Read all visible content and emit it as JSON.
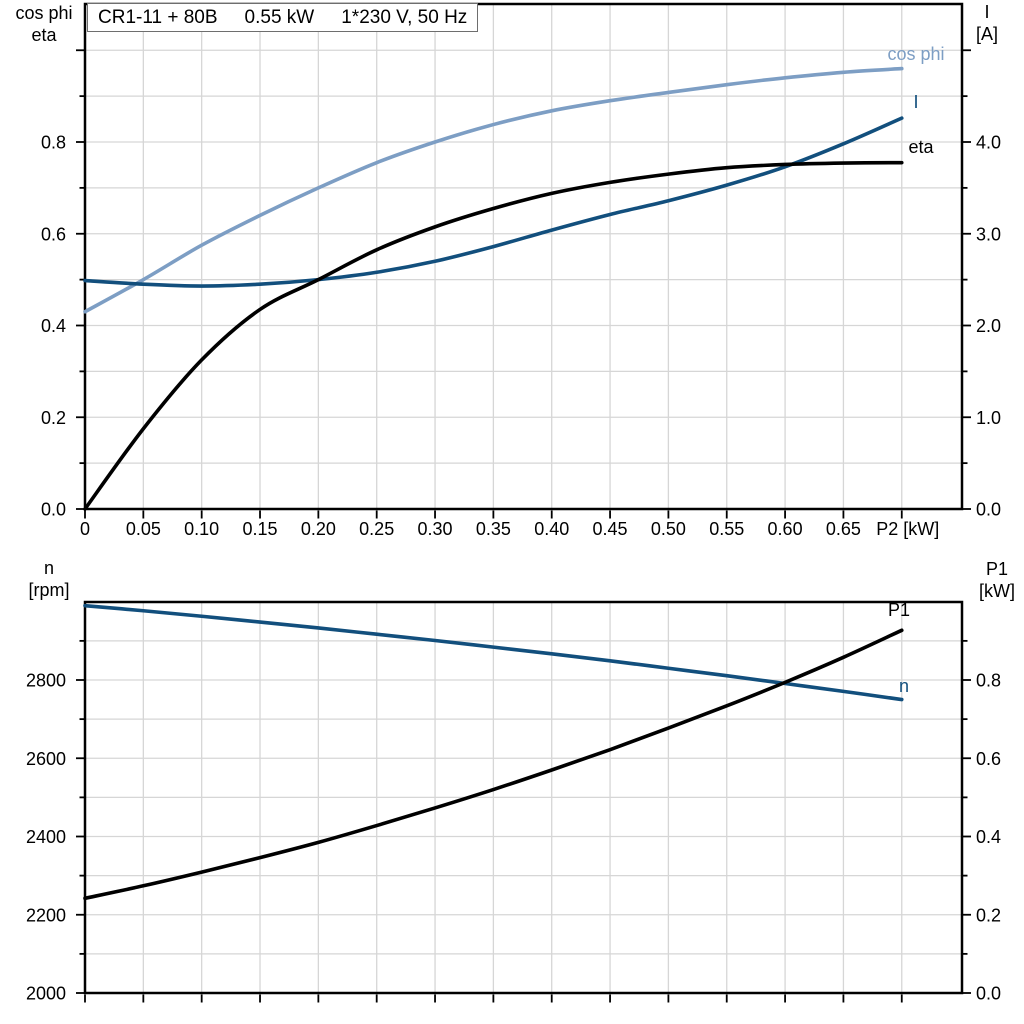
{
  "header": {
    "model": "CR1-11 + 80B",
    "power": "0.55 kW",
    "supply": "1*230 V, 50 Hz"
  },
  "colors": {
    "curve_light_blue": "#7D9EC4",
    "curve_dark_blue": "#124F7D",
    "curve_black": "#000000",
    "grid": "#D6D6D6",
    "frame": "#000000"
  },
  "chart_data": [
    {
      "type": "line",
      "position": "top",
      "x_label": "P2 [kW]",
      "x": [
        0,
        0.05,
        0.1,
        0.15,
        0.2,
        0.25,
        0.3,
        0.35,
        0.4,
        0.45,
        0.5,
        0.55,
        0.6,
        0.65,
        0.7
      ],
      "x_axis": {
        "range": [
          0,
          0.752
        ],
        "tick_step": 0.05,
        "ticks": [
          {
            "v": 0,
            "label": "0"
          },
          {
            "v": 0.05,
            "label": "0.05"
          },
          {
            "v": 0.1,
            "label": "0.10"
          },
          {
            "v": 0.15,
            "label": "0.15"
          },
          {
            "v": 0.2,
            "label": "0.20"
          },
          {
            "v": 0.25,
            "label": "0.25"
          },
          {
            "v": 0.3,
            "label": "0.30"
          },
          {
            "v": 0.35,
            "label": "0.35"
          },
          {
            "v": 0.4,
            "label": "0.40"
          },
          {
            "v": 0.45,
            "label": "0.45"
          },
          {
            "v": 0.5,
            "label": "0.50"
          },
          {
            "v": 0.55,
            "label": "0.55"
          },
          {
            "v": 0.6,
            "label": "0.60"
          },
          {
            "v": 0.65,
            "label": "0.65"
          },
          {
            "v": 0.7,
            "label": "P2 [kW]"
          }
        ]
      },
      "left_axis": {
        "name_line1": "cos phi",
        "name_line2": "eta",
        "range": [
          0,
          1.09
        ],
        "minor_step": 0.1,
        "minor_max": 1.0,
        "major_every": 2,
        "ticks": [
          {
            "v": 0,
            "label": "0.0"
          },
          {
            "v": 0.2,
            "label": "0.2"
          },
          {
            "v": 0.4,
            "label": "0.4"
          },
          {
            "v": 0.6,
            "label": "0.6"
          },
          {
            "v": 0.8,
            "label": "0.8"
          }
        ]
      },
      "right_axis": {
        "name_line1": "I",
        "name_line2": "[A]",
        "range": [
          0,
          5.45
        ],
        "minor_step": 0.5,
        "minor_max": 5.0,
        "major_every": 2,
        "ticks": [
          {
            "v": 0,
            "label": "0.0"
          },
          {
            "v": 1,
            "label": "1.0"
          },
          {
            "v": 2,
            "label": "2.0"
          },
          {
            "v": 3,
            "label": "3.0"
          },
          {
            "v": 4,
            "label": "4.0"
          }
        ]
      },
      "series": [
        {
          "name": "cos phi",
          "axis": "left",
          "color": "#7D9EC4",
          "values": [
            0.43,
            0.5,
            0.575,
            0.64,
            0.7,
            0.755,
            0.8,
            0.838,
            0.868,
            0.89,
            0.908,
            0.925,
            0.94,
            0.952,
            0.96
          ]
        },
        {
          "name": "I",
          "axis": "right",
          "color": "#124F7D",
          "values": [
            2.49,
            2.45,
            2.43,
            2.45,
            2.5,
            2.58,
            2.7,
            2.86,
            3.04,
            3.21,
            3.36,
            3.53,
            3.73,
            3.98,
            4.26
          ]
        },
        {
          "name": "eta",
          "axis": "left",
          "color": "#000000",
          "values": [
            0,
            0.175,
            0.325,
            0.435,
            0.5,
            0.565,
            0.615,
            0.655,
            0.688,
            0.712,
            0.73,
            0.744,
            0.751,
            0.754,
            0.755
          ]
        }
      ]
    },
    {
      "type": "line",
      "position": "bottom",
      "x_label": "",
      "x": [
        0,
        0.05,
        0.1,
        0.15,
        0.2,
        0.25,
        0.3,
        0.35,
        0.4,
        0.45,
        0.5,
        0.55,
        0.6,
        0.65,
        0.7
      ],
      "x_axis": {
        "range": [
          0,
          0.752
        ],
        "tick_step": 0.05,
        "ticks": []
      },
      "left_axis": {
        "name_line1": "n",
        "name_line2": "[rpm]",
        "range": [
          2000,
          3000
        ],
        "minor_step": 100,
        "minor_max": 2900,
        "major_every": 2,
        "ticks": [
          {
            "v": 2000,
            "label": "2000"
          },
          {
            "v": 2200,
            "label": "2200"
          },
          {
            "v": 2400,
            "label": "2400"
          },
          {
            "v": 2600,
            "label": "2600"
          },
          {
            "v": 2800,
            "label": "2800"
          }
        ]
      },
      "right_axis": {
        "name_line1": "P1",
        "name_line2": "[kW]",
        "range": [
          0,
          1.0
        ],
        "minor_step": 0.1,
        "minor_max": 0.9,
        "major_every": 2,
        "ticks": [
          {
            "v": 0,
            "label": "0.0"
          },
          {
            "v": 0.2,
            "label": "0.2"
          },
          {
            "v": 0.4,
            "label": "0.4"
          },
          {
            "v": 0.6,
            "label": "0.6"
          },
          {
            "v": 0.8,
            "label": "0.8"
          }
        ]
      },
      "series": [
        {
          "name": "n",
          "axis": "left",
          "color": "#124F7D",
          "values": [
            2990,
            2977,
            2963,
            2948,
            2933,
            2917,
            2901,
            2884,
            2867,
            2849,
            2830,
            2811,
            2791,
            2771,
            2750
          ]
        },
        {
          "name": "P1",
          "axis": "right",
          "color": "#000000",
          "values": [
            0.242,
            0.274,
            0.309,
            0.346,
            0.385,
            0.428,
            0.473,
            0.52,
            0.57,
            0.622,
            0.677,
            0.734,
            0.794,
            0.858,
            0.927
          ]
        }
      ]
    }
  ]
}
